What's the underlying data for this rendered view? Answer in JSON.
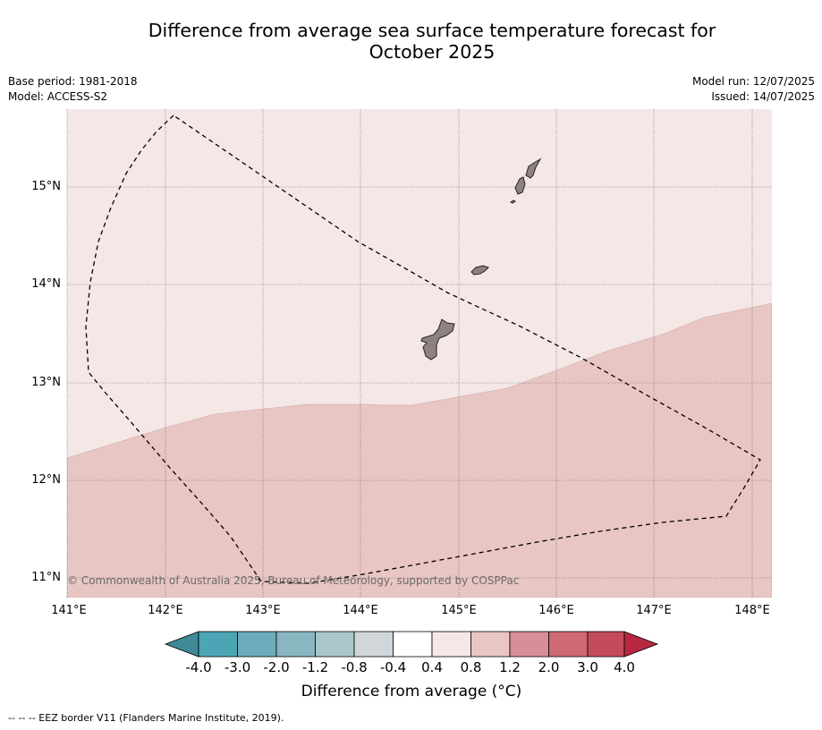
{
  "title_line1": "Difference from average sea surface temperature forecast for",
  "title_line2": "October 2025",
  "meta_left": [
    "Base period: 1981-2018",
    "Model: ACCESS-S2"
  ],
  "meta_right": [
    "Model run: 12/07/2025",
    "Issued: 14/07/2025"
  ],
  "copyright": "© Commonwealth of Australia 2025, Bureau of Meteorology, supported by COSPPac",
  "map": {
    "lon_range": [
      141,
      148.2
    ],
    "lat_range": [
      10.8,
      15.8
    ],
    "lon_ticks": [
      "141°E",
      "142°E",
      "143°E",
      "144°E",
      "145°E",
      "146°E",
      "147°E",
      "148°E"
    ],
    "lat_ticks": [
      "15°N",
      "14°N",
      "13°N",
      "12°N",
      "11°N"
    ],
    "regions": [
      {
        "anomaly_bin": "0.4 to 0.8",
        "color": "#f4e7e6"
      },
      {
        "anomaly_bin": "0.8 to 1.2",
        "color": "#e8c6c3"
      }
    ],
    "land_color": "#8e8280",
    "eez_line": "dashed"
  },
  "colorbar": {
    "colors": [
      "#3f8a96",
      "#4ba5b5",
      "#6cadbc",
      "#8ab6c2",
      "#a9c7cb",
      "#d0d6da",
      "#ffffff",
      "#f4e7e6",
      "#e8c6c3",
      "#d68e97",
      "#cf6976",
      "#c34b5b",
      "#b72840"
    ],
    "labels": [
      "-4.0",
      "-3.0",
      "-2.0",
      "-1.2",
      "-0.8",
      "-0.4",
      "0.4",
      "0.8",
      "1.2",
      "2.0",
      "3.0",
      "4.0"
    ],
    "title": "Difference from average (°C)"
  },
  "footnote": "--  --  -- EEZ border V11 (Flanders Marine Institute, 2019)."
}
